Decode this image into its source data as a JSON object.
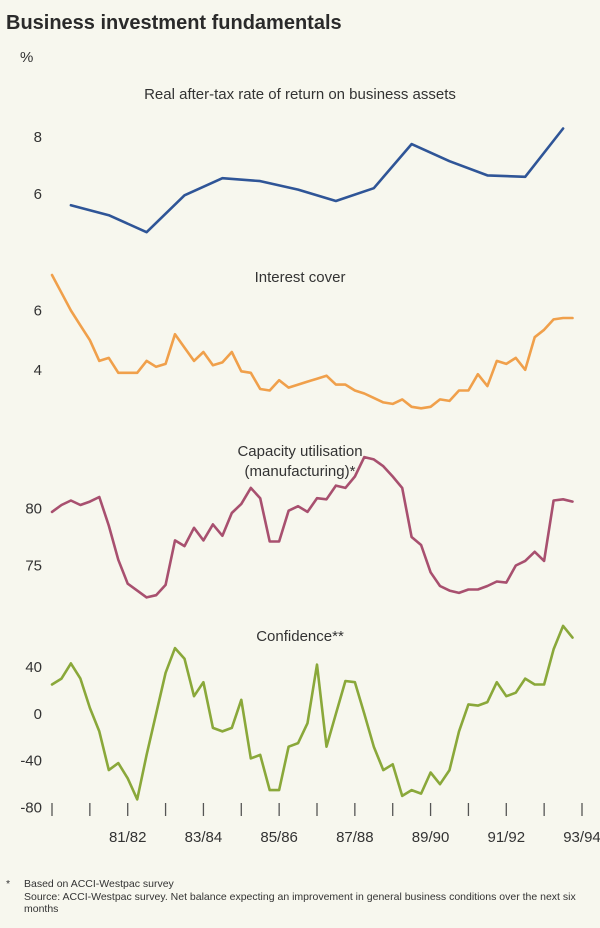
{
  "title": "Business investment fundamentals",
  "unit": "%",
  "colors": {
    "blue": "#2f5597",
    "orange": "#f0a04b",
    "maroon": "#a8506f",
    "green": "#8aa83a",
    "axis": "#555555"
  },
  "x_axis": {
    "ticks": [
      "81/82",
      "83/84",
      "85/86",
      "87/88",
      "89/90",
      "91/92",
      "93/94"
    ],
    "domain": [
      1980.0,
      1994.0
    ]
  },
  "chart_data": [
    {
      "type": "line",
      "title": "Real after-tax rate of return on business assets",
      "color": "blue",
      "ylim": [
        4.2,
        8.6
      ],
      "yticks": [
        6,
        8
      ],
      "x": [
        1980.5,
        1981.5,
        1982.5,
        1983.5,
        1984.5,
        1985.5,
        1986.5,
        1987.5,
        1988.5,
        1989.5,
        1990.5,
        1991.5,
        1992.5,
        1993.5
      ],
      "y": [
        5.6,
        5.25,
        4.65,
        5.95,
        6.55,
        6.45,
        6.15,
        5.75,
        6.2,
        7.75,
        7.15,
        6.65,
        6.6,
        8.3
      ]
    },
    {
      "type": "line",
      "title": "Interest cover",
      "color": "orange",
      "ylim": [
        1.9,
        7.2
      ],
      "yticks": [
        4,
        6
      ],
      "x": [
        1980.0,
        1980.25,
        1980.5,
        1980.75,
        1981.0,
        1981.25,
        1981.5,
        1981.75,
        1982.0,
        1982.25,
        1982.5,
        1982.75,
        1983.0,
        1983.25,
        1983.5,
        1983.75,
        1984.0,
        1984.25,
        1984.5,
        1984.75,
        1985.0,
        1985.25,
        1985.5,
        1985.75,
        1986.0,
        1986.25,
        1986.5,
        1986.75,
        1987.0,
        1987.25,
        1987.5,
        1987.75,
        1988.0,
        1988.25,
        1988.5,
        1988.75,
        1989.0,
        1989.25,
        1989.5,
        1989.75,
        1990.0,
        1990.25,
        1990.5,
        1990.75,
        1991.0,
        1991.25,
        1991.5,
        1991.75,
        1992.0,
        1992.25,
        1992.5,
        1992.75,
        1993.0,
        1993.25,
        1993.5,
        1993.75
      ],
      "y": [
        7.2,
        6.6,
        6.0,
        5.5,
        5.0,
        4.3,
        4.4,
        3.9,
        3.9,
        3.9,
        4.3,
        4.1,
        4.2,
        5.2,
        4.75,
        4.3,
        4.6,
        4.15,
        4.25,
        4.6,
        3.95,
        3.9,
        3.35,
        3.3,
        3.65,
        3.4,
        3.5,
        3.6,
        3.7,
        3.8,
        3.5,
        3.5,
        3.3,
        3.2,
        3.05,
        2.9,
        2.85,
        3.0,
        2.75,
        2.7,
        2.75,
        3.0,
        2.95,
        3.3,
        3.3,
        3.85,
        3.45,
        4.3,
        4.2,
        4.4,
        4.0,
        5.1,
        5.35,
        5.7,
        5.75,
        5.75
      ]
    },
    {
      "type": "line",
      "title": "Capacity utilisation",
      "subtitle": "(manufacturing)*",
      "color": "maroon",
      "ylim": [
        71.8,
        86.0
      ],
      "yticks": [
        75,
        80
      ],
      "x": [
        1980.0,
        1980.25,
        1980.5,
        1980.75,
        1981.0,
        1981.25,
        1981.5,
        1981.75,
        1982.0,
        1982.25,
        1982.5,
        1982.75,
        1983.0,
        1983.25,
        1983.5,
        1983.75,
        1984.0,
        1984.25,
        1984.5,
        1984.75,
        1985.0,
        1985.25,
        1985.5,
        1985.75,
        1986.0,
        1986.25,
        1986.5,
        1986.75,
        1987.0,
        1987.25,
        1987.5,
        1987.75,
        1988.0,
        1988.25,
        1988.5,
        1988.75,
        1989.0,
        1989.25,
        1989.5,
        1989.75,
        1990.0,
        1990.25,
        1990.5,
        1990.75,
        1991.0,
        1991.25,
        1991.5,
        1991.75,
        1992.0,
        1992.25,
        1992.5,
        1992.75,
        1993.0,
        1993.25,
        1993.5,
        1993.75
      ],
      "y": [
        79.7,
        80.3,
        80.7,
        80.3,
        80.6,
        81.0,
        78.5,
        75.5,
        73.4,
        72.8,
        72.2,
        72.4,
        73.3,
        77.2,
        76.7,
        78.3,
        77.2,
        78.6,
        77.6,
        79.6,
        80.4,
        81.8,
        80.9,
        77.1,
        77.1,
        79.8,
        80.2,
        79.7,
        80.9,
        80.8,
        82.0,
        81.8,
        82.8,
        84.5,
        84.3,
        83.7,
        82.8,
        81.8,
        77.5,
        76.8,
        74.4,
        73.2,
        72.8,
        72.6,
        72.9,
        72.9,
        73.2,
        73.6,
        73.5,
        75.0,
        75.4,
        76.2,
        75.4,
        80.7,
        80.8,
        80.6
      ]
    },
    {
      "type": "line",
      "title": "Confidence**",
      "color": "green",
      "ylim": [
        -82,
        80
      ],
      "yticks": [
        40,
        0,
        -40,
        -80
      ],
      "x": [
        1980.0,
        1980.25,
        1980.5,
        1980.75,
        1981.0,
        1981.25,
        1981.5,
        1981.75,
        1982.0,
        1982.25,
        1982.5,
        1982.75,
        1983.0,
        1983.25,
        1983.5,
        1983.75,
        1984.0,
        1984.25,
        1984.5,
        1984.75,
        1985.0,
        1985.25,
        1985.5,
        1985.75,
        1986.0,
        1986.25,
        1986.5,
        1986.75,
        1987.0,
        1987.25,
        1987.5,
        1987.75,
        1988.0,
        1988.25,
        1988.5,
        1988.75,
        1989.0,
        1989.25,
        1989.5,
        1989.75,
        1990.0,
        1990.25,
        1990.5,
        1990.75,
        1991.0,
        1991.25,
        1991.5,
        1991.75,
        1992.0,
        1992.25,
        1992.5,
        1992.75,
        1993.0,
        1993.25,
        1993.5,
        1993.75
      ],
      "y": [
        25,
        30,
        43,
        30,
        5,
        -15,
        -48,
        -42,
        -55,
        -73,
        -35,
        0,
        35,
        56,
        47,
        15,
        27,
        -12,
        -15,
        -12,
        12,
        -38,
        -35,
        -65,
        -65,
        -28,
        -25,
        -8,
        42,
        -28,
        0,
        28,
        27,
        0,
        -28,
        -48,
        -43,
        -70,
        -65,
        -68,
        -50,
        -60,
        -48,
        -15,
        8,
        7,
        10,
        27,
        15,
        18,
        30,
        25,
        25,
        55,
        75,
        65
      ]
    }
  ],
  "footnotes": [
    {
      "mark": "*",
      "text": "Based on ACCI-Westpac survey"
    },
    {
      "mark": "**",
      "text": "Source: ACCI-Westpac survey. Net balance expecting an improvement in general business conditions over the next six months"
    }
  ]
}
